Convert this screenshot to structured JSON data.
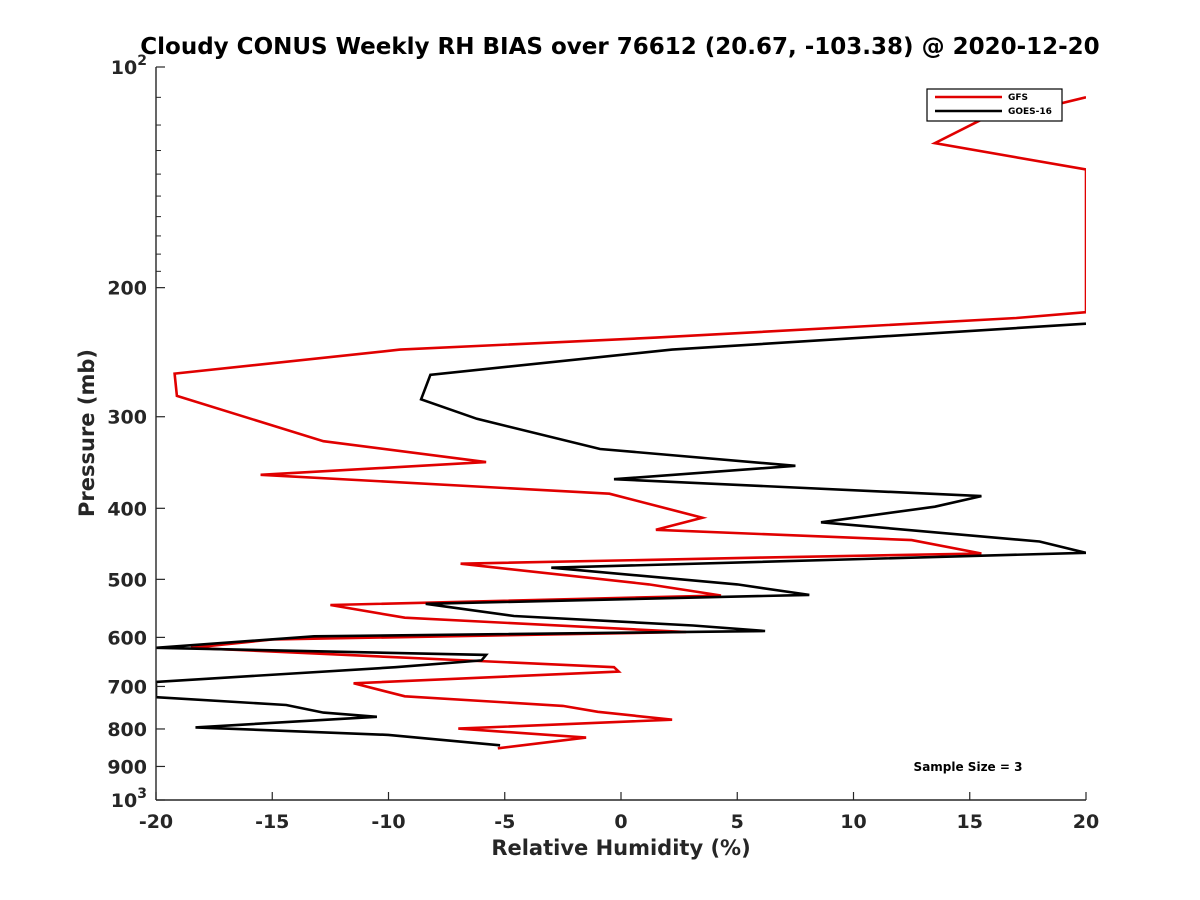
{
  "chart_data": {
    "type": "line",
    "title": "Cloudy CONUS Weekly RH BIAS over 76612 (20.67, -103.38) @ 2020-12-20",
    "xlabel": "Relative Humidity (%)",
    "ylabel": "Pressure (mb)",
    "xlim": [
      -20,
      20
    ],
    "ylim": [
      100,
      1000
    ],
    "yscale": "log",
    "y_reversed": true,
    "x_ticks": [
      -20,
      -15,
      -10,
      -5,
      0,
      5,
      10,
      15,
      20
    ],
    "x_tick_labels": [
      "-20",
      "-15",
      "-10",
      "-5",
      "0",
      "5",
      "10",
      "15",
      "20"
    ],
    "y_ticks": [
      {
        "value": 100,
        "base": "10",
        "exp": "2"
      },
      {
        "value": 200,
        "label": "200"
      },
      {
        "value": 300,
        "label": "300"
      },
      {
        "value": 400,
        "label": "400"
      },
      {
        "value": 500,
        "label": "500"
      },
      {
        "value": 600,
        "label": "600"
      },
      {
        "value": 700,
        "label": "700"
      },
      {
        "value": 800,
        "label": "800"
      },
      {
        "value": 900,
        "label": "900"
      },
      {
        "value": 1000,
        "base": "10",
        "exp": "3"
      }
    ],
    "legend": {
      "position": "top-right"
    },
    "annotation": "Sample Size = 3",
    "series": [
      {
        "name": "GFS",
        "color": "#e00000",
        "points": [
          [
            20.0,
            110
          ],
          [
            16.5,
            117
          ],
          [
            15.5,
            118
          ],
          [
            13.5,
            127
          ],
          [
            20.0,
            138
          ],
          [
            20.0,
            216
          ],
          [
            17.0,
            220
          ],
          [
            1.5,
            234
          ],
          [
            -9.5,
            243
          ],
          [
            -19.2,
            262
          ],
          [
            -19.1,
            281
          ],
          [
            -12.8,
            324
          ],
          [
            -5.8,
            346
          ],
          [
            -15.5,
            360
          ],
          [
            -0.5,
            382
          ],
          [
            3.5,
            412
          ],
          [
            1.5,
            428
          ],
          [
            12.5,
            442
          ],
          [
            15.5,
            461
          ],
          [
            6.0,
            467
          ],
          [
            -6.9,
            476
          ],
          [
            1.2,
            508
          ],
          [
            4.3,
            526
          ],
          [
            -12.5,
            542
          ],
          [
            -9.3,
            564
          ],
          [
            2.8,
            590
          ],
          [
            -15.0,
            604
          ],
          [
            -18.5,
            620
          ],
          [
            -0.3,
            659
          ],
          [
            -0.1,
            668
          ],
          [
            -11.5,
            693
          ],
          [
            -9.3,
            722
          ],
          [
            -2.5,
            744
          ],
          [
            -1.0,
            758
          ],
          [
            2.2,
            777
          ],
          [
            -7.0,
            799
          ],
          [
            -1.5,
            822
          ],
          [
            -5.3,
            850
          ]
        ]
      },
      {
        "name": "GOES-16",
        "color": "#000000",
        "points": [
          [
            20.0,
            224
          ],
          [
            2.2,
            243
          ],
          [
            -8.2,
            263
          ],
          [
            -8.6,
            284
          ],
          [
            -6.2,
            302
          ],
          [
            -0.9,
            332
          ],
          [
            7.5,
            350
          ],
          [
            -0.3,
            365
          ],
          [
            15.5,
            385
          ],
          [
            13.5,
            398
          ],
          [
            8.6,
            418
          ],
          [
            18.0,
            444
          ],
          [
            20.0,
            460
          ],
          [
            -3.0,
            482
          ],
          [
            5.0,
            508
          ],
          [
            8.1,
            525
          ],
          [
            -8.4,
            540
          ],
          [
            -4.6,
            561
          ],
          [
            3.1,
            578
          ],
          [
            6.2,
            588
          ],
          [
            -13.2,
            598
          ],
          [
            -20.0,
            620
          ],
          [
            -5.8,
            634
          ],
          [
            -6.0,
            645
          ],
          [
            -9.7,
            659
          ],
          [
            -20.0,
            690
          ],
          [
            -20.0,
            724
          ],
          [
            -14.4,
            742
          ],
          [
            -12.8,
            760
          ],
          [
            -10.5,
            770
          ],
          [
            -18.3,
            796
          ],
          [
            -10.0,
            815
          ],
          [
            -5.2,
            842
          ]
        ]
      }
    ]
  }
}
